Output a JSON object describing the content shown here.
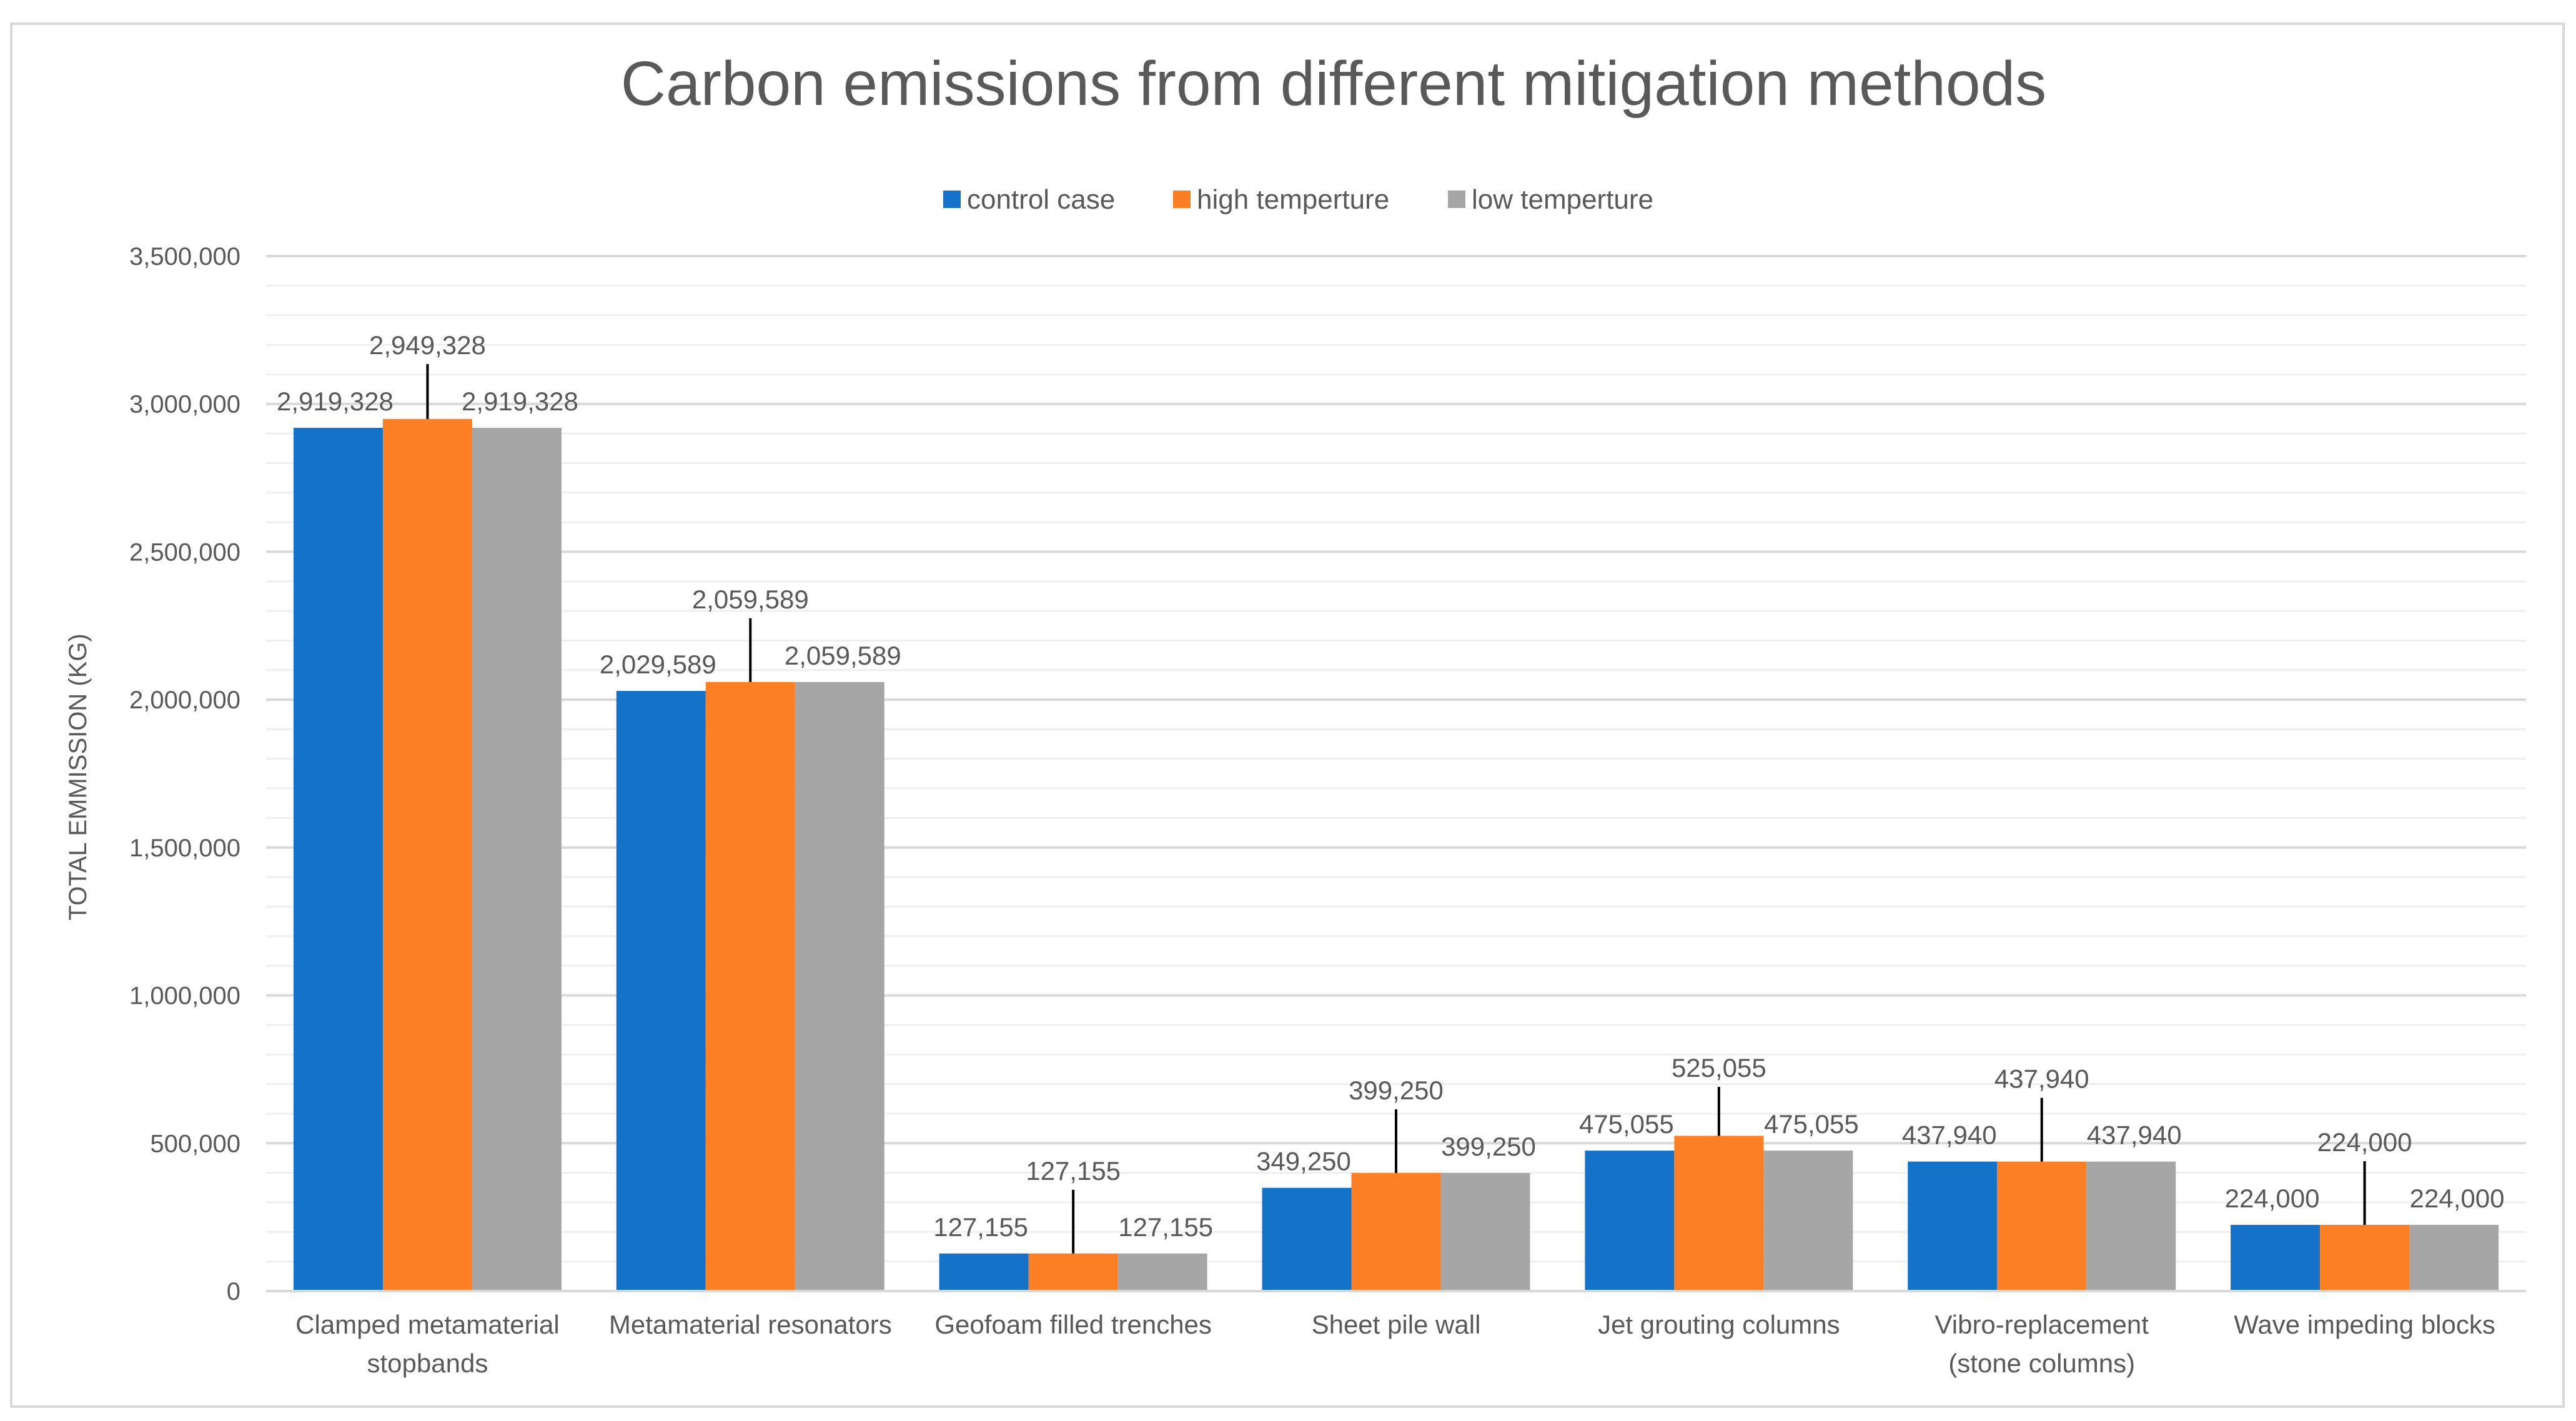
{
  "chart_data": {
    "type": "bar",
    "title": "Carbon emissions from different mitigation methods",
    "xlabel": "",
    "ylabel": "TOTAL EMMISSION (KG)",
    "ylim": [
      0,
      3500000
    ],
    "yticks": [
      0,
      500000,
      1000000,
      1500000,
      2000000,
      2500000,
      3000000,
      3500000
    ],
    "ytick_labels": [
      "0",
      "500,000",
      "1,000,000",
      "1,500,000",
      "2,000,000",
      "2,500,000",
      "3,000,000",
      "3,500,000"
    ],
    "minor_gridline_step": 100000,
    "grid": true,
    "legend_position": "top",
    "categories": [
      [
        "Clamped metamaterial",
        "stopbands"
      ],
      [
        "Metamaterial resonators"
      ],
      [
        "Geofoam filled trenches"
      ],
      [
        "Sheet pile wall"
      ],
      [
        "Jet grouting columns"
      ],
      [
        "Vibro-replacement",
        "(stone columns)"
      ],
      [
        "Wave impeding blocks"
      ]
    ],
    "series": [
      {
        "name": "control case",
        "color": "#1472c9",
        "values": [
          2919328,
          2029589,
          127155,
          349250,
          475055,
          437940,
          224000
        ],
        "labels": [
          "2,919,328",
          "2,029,589",
          "127,155",
          "349,250",
          "475,055",
          "437,940",
          "224,000"
        ]
      },
      {
        "name": "high temperture",
        "color": "#fd7f24",
        "values": [
          2949328,
          2059589,
          127155,
          399250,
          525055,
          437940,
          224000
        ],
        "labels": [
          "2,949,328",
          "2,059,589",
          "127,155",
          "399,250",
          "525,055",
          "437,940",
          "224,000"
        ]
      },
      {
        "name": "low temperture",
        "color": "#a6a6a6",
        "values": [
          2919328,
          2059589,
          127155,
          399250,
          475055,
          437940,
          224000
        ],
        "labels": [
          "2,919,328",
          "2,059,589",
          "127,155",
          "399,250",
          "475,055",
          "437,940",
          "224,000"
        ]
      }
    ],
    "colors": {
      "text": "#595959",
      "major_grid": "#d9d9d9",
      "minor_grid": "#efefef",
      "axis": "#d9d9d9",
      "leader_line": "#000000"
    }
  }
}
